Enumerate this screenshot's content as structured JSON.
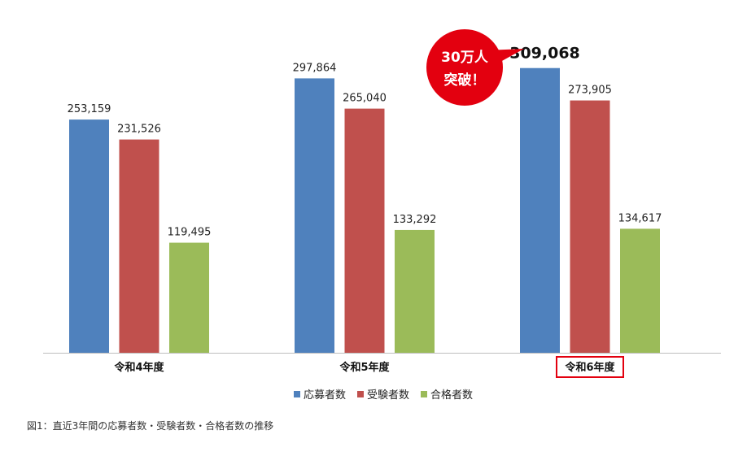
{
  "chart_data": {
    "type": "bar",
    "categories": [
      "令和4年度",
      "令和5年度",
      "令和6年度"
    ],
    "series": [
      {
        "name": "応募者数",
        "values": [
          253159,
          297864,
          309068
        ],
        "labels": [
          "253,159",
          "297,864",
          "309,068"
        ],
        "color": "#4f81bd"
      },
      {
        "name": "受験者数",
        "values": [
          231526,
          265040,
          273905
        ],
        "labels": [
          "231,526",
          "265,040",
          "273,905"
        ],
        "color": "#c0504d"
      },
      {
        "name": "合格者数",
        "values": [
          119495,
          133292,
          134617
        ],
        "labels": [
          "119,495",
          "133,292",
          "134,617"
        ],
        "color": "#9bbb59"
      }
    ],
    "highlight_category": "令和6年度",
    "highlight_color": "#e3000f",
    "ylim": [
      0,
      330000
    ],
    "grid": false,
    "legend_position": "bottom",
    "callout": {
      "line1": "30万人",
      "line2": "突破！",
      "color": "#e3000f"
    }
  },
  "caption": "図1：直近3年間の応募者数・受験者数・合格者数の推移"
}
